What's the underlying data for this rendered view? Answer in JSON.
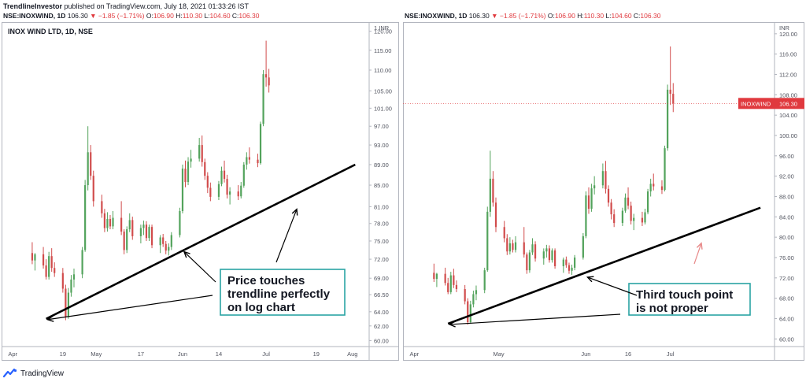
{
  "header": {
    "author": "TrendlineInvestor",
    "published": "published on TradingView.com, July 18, 2021 01:33:26 IST"
  },
  "left_info": {
    "symbol": "NSE:INOXWIND, 1D",
    "price": "106.30",
    "change": "▼ −1.85 (−1.71%)",
    "o_label": "O:",
    "o": "106.90",
    "h_label": "H:",
    "h": "110.30",
    "l_label": "L:",
    "l": "104.60",
    "c_label": "C:",
    "c": "106.30"
  },
  "right_info": {
    "symbol": "NSE:INOXWIND, 1D",
    "price": "106.30",
    "change": "▼ −1.85 (−1.71%)",
    "o_label": "O:",
    "o": "106.90",
    "h_label": "H:",
    "h": "110.30",
    "l_label": "L:",
    "l": "104.60",
    "c_label": "C:",
    "c": "106.30"
  },
  "footer": {
    "brand": "TradingView",
    "logo_icon": "tradingview-logo-icon"
  },
  "colors": {
    "up": "#53a35c",
    "down": "#d14c4c",
    "trendline": "#000000",
    "annotation_border": "#2aa3a3",
    "price_tag": "#e0393e",
    "arrow_red": "#e88a8a"
  },
  "chart_data": [
    {
      "type": "candlestick",
      "title": "INOX WIND LTD, 1D, NSE",
      "scale": "log",
      "currency_label": "1 INR",
      "y_ticks": [
        60,
        62,
        64,
        66.5,
        69,
        72,
        75,
        78,
        81,
        85,
        89,
        93,
        97,
        101,
        105,
        110,
        115,
        120
      ],
      "y_tick_labels": [
        "60.00",
        "62.00",
        "64.00",
        "66.50",
        "69.00",
        "72.00",
        "75.00",
        "78.00",
        "81.00",
        "85.00",
        "89.00",
        "93.00",
        "97.00",
        "101.00",
        "105.00",
        "110.00",
        "115.00",
        "120.00"
      ],
      "x_labels": [
        "Apr",
        "19",
        "May",
        "17",
        "Jun",
        "14",
        "Jul",
        "19",
        "Aug"
      ],
      "trendline": {
        "from": {
          "date": "2021-04-13",
          "price": 63
        },
        "to": {
          "date": "2021-08-02",
          "price": 89
        }
      },
      "annotation": {
        "text_lines": [
          "Price touches",
          "trendline perfectly",
          "on log chart"
        ]
      },
      "candles": [
        {
          "o": 73.0,
          "h": 74.8,
          "l": 71.2,
          "c": 71.8
        },
        {
          "o": 71.8,
          "h": 73.0,
          "l": 70.2,
          "c": 72.8
        },
        {
          "o": 72.8,
          "h": 74.0,
          "l": 70.5,
          "c": 71.0
        },
        {
          "o": 71.0,
          "h": 72.0,
          "l": 68.8,
          "c": 69.2
        },
        {
          "o": 69.2,
          "h": 73.2,
          "l": 68.8,
          "c": 72.5
        },
        {
          "o": 72.5,
          "h": 73.8,
          "l": 70.0,
          "c": 70.6
        },
        {
          "o": 70.6,
          "h": 71.5,
          "l": 69.2,
          "c": 69.8
        },
        {
          "o": 69.8,
          "h": 70.6,
          "l": 66.8,
          "c": 67.4
        },
        {
          "o": 67.4,
          "h": 68.0,
          "l": 62.8,
          "c": 63.3
        },
        {
          "o": 63.3,
          "h": 67.5,
          "l": 63.0,
          "c": 66.8
        },
        {
          "o": 66.8,
          "h": 69.5,
          "l": 66.2,
          "c": 68.8
        },
        {
          "o": 68.8,
          "h": 70.5,
          "l": 67.6,
          "c": 69.6
        },
        {
          "o": 69.6,
          "h": 74.0,
          "l": 69.0,
          "c": 73.5
        },
        {
          "o": 73.5,
          "h": 86.0,
          "l": 73.2,
          "c": 85.0
        },
        {
          "o": 85.0,
          "h": 97.0,
          "l": 84.0,
          "c": 91.5
        },
        {
          "o": 91.5,
          "h": 93.0,
          "l": 86.0,
          "c": 86.8
        },
        {
          "o": 86.8,
          "h": 87.8,
          "l": 81.0,
          "c": 82.0
        },
        {
          "o": 82.0,
          "h": 83.2,
          "l": 79.0,
          "c": 79.8
        },
        {
          "o": 79.8,
          "h": 80.6,
          "l": 76.5,
          "c": 77.2
        },
        {
          "o": 77.2,
          "h": 80.0,
          "l": 76.6,
          "c": 78.8
        },
        {
          "o": 78.8,
          "h": 79.5,
          "l": 77.0,
          "c": 77.5
        },
        {
          "o": 77.5,
          "h": 80.2,
          "l": 77.0,
          "c": 79.0
        },
        {
          "o": 79.0,
          "h": 82.0,
          "l": 76.0,
          "c": 76.6
        },
        {
          "o": 76.6,
          "h": 77.0,
          "l": 72.8,
          "c": 73.5
        },
        {
          "o": 73.5,
          "h": 77.5,
          "l": 73.0,
          "c": 77.0
        },
        {
          "o": 77.0,
          "h": 79.8,
          "l": 76.5,
          "c": 78.6
        },
        {
          "o": 78.6,
          "h": 79.2,
          "l": 75.2,
          "c": 75.8
        },
        {
          "o": 75.8,
          "h": 77.8,
          "l": 74.6,
          "c": 77.2
        },
        {
          "o": 77.2,
          "h": 78.5,
          "l": 76.0,
          "c": 77.8
        },
        {
          "o": 77.8,
          "h": 78.4,
          "l": 75.0,
          "c": 75.5
        },
        {
          "o": 75.5,
          "h": 77.8,
          "l": 75.0,
          "c": 77.4
        },
        {
          "o": 77.4,
          "h": 77.8,
          "l": 73.8,
          "c": 74.3
        },
        {
          "o": 74.3,
          "h": 76.0,
          "l": 73.0,
          "c": 75.6
        },
        {
          "o": 75.6,
          "h": 76.2,
          "l": 74.0,
          "c": 74.5
        },
        {
          "o": 74.5,
          "h": 75.0,
          "l": 72.8,
          "c": 73.4
        },
        {
          "o": 73.4,
          "h": 74.6,
          "l": 72.6,
          "c": 74.0
        },
        {
          "o": 74.0,
          "h": 76.5,
          "l": 73.5,
          "c": 76.0
        },
        {
          "o": 76.0,
          "h": 80.8,
          "l": 75.6,
          "c": 80.2
        },
        {
          "o": 80.2,
          "h": 89.0,
          "l": 79.8,
          "c": 88.2
        },
        {
          "o": 88.2,
          "h": 89.8,
          "l": 84.6,
          "c": 85.6
        },
        {
          "o": 85.6,
          "h": 90.5,
          "l": 85.0,
          "c": 89.6
        },
        {
          "o": 89.6,
          "h": 92.0,
          "l": 88.4,
          "c": 90.2
        },
        {
          "o": 90.2,
          "h": 94.5,
          "l": 89.6,
          "c": 93.0
        },
        {
          "o": 93.0,
          "h": 95.0,
          "l": 88.6,
          "c": 89.5
        },
        {
          "o": 89.5,
          "h": 90.2,
          "l": 86.0,
          "c": 86.8
        },
        {
          "o": 86.8,
          "h": 87.5,
          "l": 83.5,
          "c": 84.5
        },
        {
          "o": 84.5,
          "h": 85.5,
          "l": 82.0,
          "c": 82.8
        },
        {
          "o": 82.8,
          "h": 85.8,
          "l": 82.2,
          "c": 85.2
        },
        {
          "o": 85.2,
          "h": 88.6,
          "l": 84.8,
          "c": 87.8
        },
        {
          "o": 87.8,
          "h": 89.8,
          "l": 85.5,
          "c": 86.2
        },
        {
          "o": 86.2,
          "h": 87.0,
          "l": 82.5,
          "c": 83.2
        },
        {
          "o": 83.2,
          "h": 84.6,
          "l": 81.4,
          "c": 83.8
        },
        {
          "o": 83.8,
          "h": 85.0,
          "l": 82.2,
          "c": 82.9
        },
        {
          "o": 82.9,
          "h": 85.6,
          "l": 82.5,
          "c": 84.9
        },
        {
          "o": 84.9,
          "h": 89.5,
          "l": 84.5,
          "c": 89.0
        },
        {
          "o": 89.0,
          "h": 91.5,
          "l": 88.0,
          "c": 90.5
        },
        {
          "o": 90.5,
          "h": 92.5,
          "l": 89.2,
          "c": 90.0
        },
        {
          "o": 90.0,
          "h": 91.2,
          "l": 88.5,
          "c": 89.3
        },
        {
          "o": 89.3,
          "h": 98.0,
          "l": 89.0,
          "c": 97.5
        },
        {
          "o": 97.5,
          "h": 110.0,
          "l": 97.0,
          "c": 109.0
        },
        {
          "o": 109.0,
          "h": 117.5,
          "l": 106.0,
          "c": 108.2
        },
        {
          "o": 108.2,
          "h": 110.3,
          "l": 104.6,
          "c": 106.3
        }
      ]
    },
    {
      "type": "candlestick",
      "title": "",
      "scale": "linear",
      "currency_label": "INR",
      "y_ticks": [
        60,
        64,
        68,
        72,
        76,
        80,
        84,
        88,
        92,
        96,
        100,
        104,
        108,
        112,
        116,
        120
      ],
      "y_tick_labels": [
        "60.00",
        "64.00",
        "68.00",
        "72.00",
        "76.00",
        "80.00",
        "84.00",
        "88.00",
        "92.00",
        "96.00",
        "100.00",
        "104.00",
        "108.00",
        "112.00",
        "116.00",
        "120.00"
      ],
      "x_labels": [
        "Apr",
        "May",
        "Jun",
        "16",
        "Jul"
      ],
      "price_tag": {
        "name": "INOXWIND",
        "value": "106.30"
      },
      "trendline": {
        "from": {
          "date": "2021-04-13",
          "price": 63
        },
        "to": {
          "date": "2021-08-02",
          "price": 85.8
        }
      },
      "annotation": {
        "text_lines": [
          "Third touch point",
          "is not proper"
        ]
      },
      "candles": "same daily OHLC series as the left chart (NSE:INOXWIND, 1D)"
    }
  ]
}
